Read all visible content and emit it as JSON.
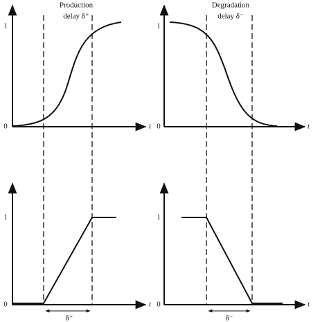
{
  "panels": [
    {
      "title": [
        "Production",
        "delay δ⁺"
      ],
      "y_labels": [
        "1",
        "0"
      ],
      "x_label": "t"
    },
    {
      "title": [
        "Degradation",
        "delay δ⁻"
      ],
      "y_labels": [
        "1",
        "0"
      ],
      "x_label": "t"
    },
    {
      "y_labels": [
        "1",
        "0"
      ],
      "x_label": "t",
      "delay_label": "δ⁺"
    },
    {
      "y_labels": [
        "1",
        "0"
      ],
      "x_label": "t",
      "delay_label": "δ⁻"
    }
  ]
}
